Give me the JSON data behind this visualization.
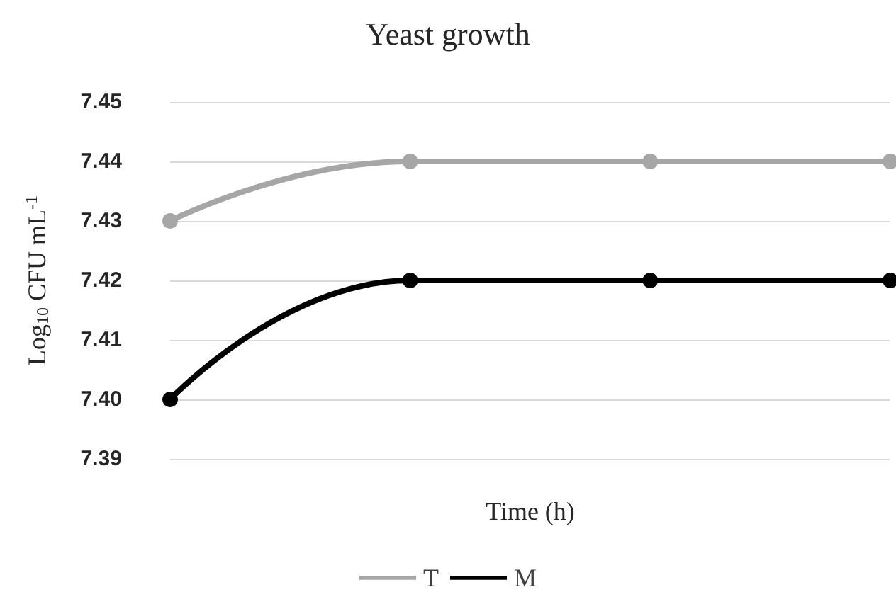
{
  "chart_data": {
    "type": "line",
    "title": "Yeast growth",
    "xlabel": "Time (h)",
    "ylabel": "Log$_{10}$ CFU mL$^{-1}$",
    "categories": [
      null,
      null,
      null,
      null
    ],
    "series": [
      {
        "name": "T",
        "color": "#a6a6a6",
        "values": [
          7.43,
          7.44,
          7.44,
          7.44
        ]
      },
      {
        "name": "M",
        "color": "#000000",
        "values": [
          7.4,
          7.42,
          7.42,
          7.42
        ]
      }
    ],
    "ylim": [
      7.39,
      7.45
    ],
    "yticks": [
      7.39,
      {
        "value": 7.4,
        "label": "7.40"
      },
      7.41,
      7.42,
      7.43,
      7.44,
      7.45
    ],
    "grid": "y",
    "legend": "bottom",
    "marker": "circle",
    "line_style": "solid"
  }
}
